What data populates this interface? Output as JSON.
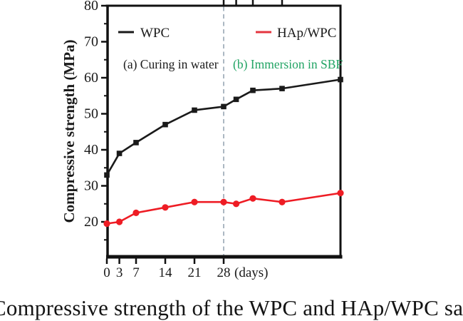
{
  "figure": {
    "caption": "Compressive strength of the WPC and HAp/WPC samples"
  },
  "chart_data": {
    "type": "line",
    "title": "",
    "xlabel": "",
    "x_unit_label": "(days)",
    "ylabel": "Compressive strength (MPa)",
    "xlim": [
      0,
      56
    ],
    "ylim": [
      10,
      80
    ],
    "grid": false,
    "legend_position": "top-inside",
    "y_major_ticks": [
      20,
      30,
      40,
      50,
      60,
      70,
      80
    ],
    "y_minor_ticks": [
      15,
      25,
      35,
      45,
      55,
      65,
      75
    ],
    "x_ticks": [
      0,
      3,
      7,
      14,
      21,
      28
    ],
    "top_axis_ticks": [
      28,
      31,
      35,
      42
    ],
    "divider_x": 28,
    "divider_color": "#97a6b4",
    "x": [
      0,
      3,
      7,
      14,
      21,
      28,
      31,
      35,
      42,
      56
    ],
    "series": [
      {
        "name": "WPC",
        "color": "#1a1a1a",
        "marker": "square",
        "values": [
          33,
          39,
          42,
          47,
          51,
          52,
          54,
          56.5,
          57,
          59.5
        ]
      },
      {
        "name": "HAp/WPC",
        "color": "#ee1c24",
        "marker": "circle",
        "values": [
          19.5,
          20,
          22.5,
          24,
          25.5,
          25.5,
          25,
          26.5,
          25.5,
          28
        ]
      }
    ],
    "legend": [
      {
        "label": "WPC",
        "color": "#1a1a1a"
      },
      {
        "label": "HAp/WPC",
        "color": "#e4353f"
      }
    ],
    "annotations": [
      {
        "label": "(a) Curing in water",
        "color": "#1a1a1a"
      },
      {
        "label": "(b) Immersion in SBF",
        "color": "#21a464"
      }
    ]
  }
}
